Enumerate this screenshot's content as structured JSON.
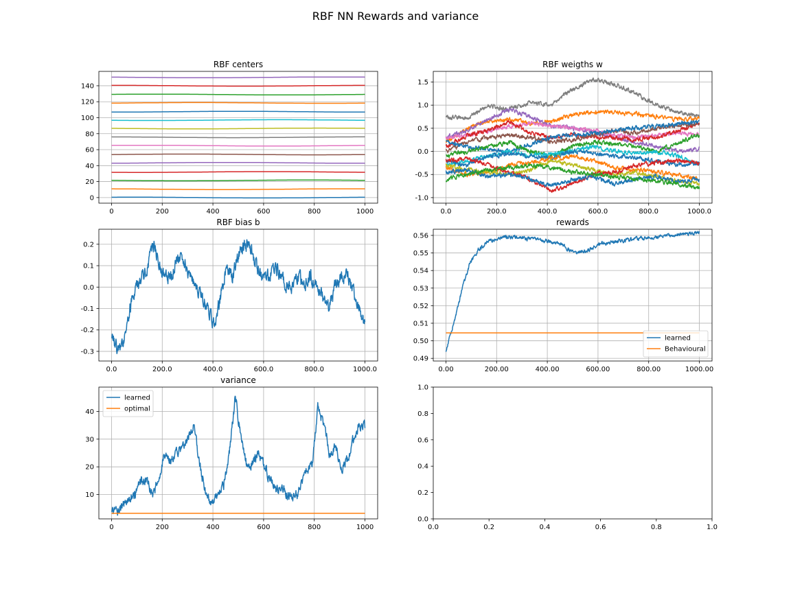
{
  "figure": {
    "title": "RBF NN Rewards and variance"
  },
  "colors": [
    "#1f77b4",
    "#ff7f0e",
    "#2ca02c",
    "#d62728",
    "#9467bd",
    "#8c564b",
    "#e377c2",
    "#7f7f7f",
    "#bcbd22",
    "#17becf"
  ],
  "chart_data": [
    {
      "id": "centers",
      "type": "line",
      "title": "RBF centers",
      "xlim": [
        -50,
        1050
      ],
      "ylim": [
        -7,
        158
      ],
      "xticks": [
        0,
        200,
        400,
        600,
        800,
        1000
      ],
      "yticks": [
        0,
        20,
        40,
        60,
        80,
        100,
        120,
        140
      ],
      "grid": true,
      "series": [
        {
          "style": "wave",
          "base": 0,
          "amp": 0.6,
          "seed": 1,
          "color": "#1f77b4"
        },
        {
          "style": "wave",
          "base": 10.5,
          "amp": 0.6,
          "seed": 2,
          "color": "#ff7f0e"
        },
        {
          "style": "wave",
          "base": 21.5,
          "amp": 0.6,
          "seed": 3,
          "color": "#2ca02c"
        },
        {
          "style": "wave",
          "base": 32,
          "amp": 0.6,
          "seed": 4,
          "color": "#d62728"
        },
        {
          "style": "wave",
          "base": 43.5,
          "amp": 0.6,
          "seed": 5,
          "color": "#9467bd"
        },
        {
          "style": "wave",
          "base": 54,
          "amp": 0.6,
          "seed": 6,
          "color": "#8c564b"
        },
        {
          "style": "wave",
          "base": 65,
          "amp": 0.6,
          "seed": 7,
          "color": "#e377c2"
        },
        {
          "style": "wave",
          "base": 75.5,
          "amp": 0.6,
          "seed": 8,
          "color": "#7f7f7f"
        },
        {
          "style": "wave",
          "base": 86.5,
          "amp": 0.6,
          "seed": 9,
          "color": "#bcbd22"
        },
        {
          "style": "wave",
          "base": 97,
          "amp": 0.6,
          "seed": 10,
          "color": "#17becf"
        },
        {
          "style": "wave",
          "base": 107.5,
          "amp": 0.6,
          "seed": 11,
          "color": "#1f77b4"
        },
        {
          "style": "wave",
          "base": 118.5,
          "amp": 0.6,
          "seed": 12,
          "color": "#ff7f0e"
        },
        {
          "style": "wave",
          "base": 129,
          "amp": 0.6,
          "seed": 13,
          "color": "#2ca02c"
        },
        {
          "style": "wave",
          "base": 140,
          "amp": 0.6,
          "seed": 14,
          "color": "#d62728"
        },
        {
          "style": "wave",
          "base": 150.5,
          "amp": 0.6,
          "seed": 15,
          "color": "#9467bd"
        }
      ]
    },
    {
      "id": "weights",
      "type": "line",
      "title": "RBF weigths w",
      "xlim": [
        -50,
        1050
      ],
      "ylim": [
        -1.12,
        1.73
      ],
      "xticks": [
        0,
        200,
        400,
        600,
        800,
        1000
      ],
      "yticks": [
        -1.0,
        -0.5,
        0.0,
        0.5,
        1.0,
        1.5
      ],
      "grid": true,
      "series": [
        {
          "style": "walk",
          "knots": [
            0.75,
            0.72,
            1.0,
            0.9,
            1.05,
            1.0,
            1.35,
            1.55,
            1.45,
            1.25,
            1.0,
            0.85,
            0.75
          ],
          "noise": 0.05,
          "seed": 21,
          "color": "#7f7f7f"
        },
        {
          "style": "walk",
          "knots": [
            0.2,
            0.5,
            0.65,
            0.7,
            0.6,
            0.65,
            0.8,
            0.85,
            0.85,
            0.8,
            0.75,
            0.7,
            0.7
          ],
          "noise": 0.05,
          "seed": 22,
          "color": "#ff7f0e"
        },
        {
          "style": "walk",
          "knots": [
            0.3,
            0.45,
            0.7,
            0.9,
            0.75,
            0.55,
            0.5,
            0.4,
            0.3,
            0.2,
            0.1,
            0.0,
            0.05
          ],
          "noise": 0.05,
          "seed": 23,
          "color": "#9467bd"
        },
        {
          "style": "walk",
          "knots": [
            0.3,
            0.35,
            0.45,
            0.55,
            0.6,
            0.55,
            0.5,
            0.45,
            0.35,
            0.3,
            0.35,
            0.4,
            0.35
          ],
          "noise": 0.05,
          "seed": 24,
          "color": "#e377c2"
        },
        {
          "style": "walk",
          "knots": [
            0.1,
            0.35,
            0.45,
            0.65,
            0.4,
            0.3,
            0.35,
            0.3,
            0.3,
            0.25,
            0.3,
            0.45,
            0.6
          ],
          "noise": 0.05,
          "seed": 25,
          "color": "#d62728"
        },
        {
          "style": "walk",
          "knots": [
            0.0,
            0.2,
            0.3,
            0.35,
            0.3,
            0.2,
            0.25,
            0.35,
            0.45,
            0.4,
            0.5,
            0.55,
            0.6
          ],
          "noise": 0.05,
          "seed": 26,
          "color": "#8c564b"
        },
        {
          "style": "walk",
          "knots": [
            0.2,
            0.1,
            0.05,
            0.0,
            0.15,
            0.3,
            0.35,
            0.4,
            0.45,
            0.5,
            0.55,
            0.6,
            0.65
          ],
          "noise": 0.05,
          "seed": 27,
          "color": "#1f77b4"
        },
        {
          "style": "walk",
          "knots": [
            -0.1,
            0.0,
            0.1,
            0.2,
            0.0,
            -0.1,
            0.1,
            0.2,
            0.15,
            0.1,
            0.0,
            0.2,
            0.35
          ],
          "noise": 0.05,
          "seed": 28,
          "color": "#2ca02c"
        },
        {
          "style": "walk",
          "knots": [
            -0.3,
            -0.2,
            -0.1,
            0.0,
            -0.1,
            -0.05,
            0.0,
            0.1,
            0.0,
            -0.05,
            0.0,
            -0.1,
            -0.3
          ],
          "noise": 0.05,
          "seed": 29,
          "color": "#17becf"
        },
        {
          "style": "walk",
          "knots": [
            -0.2,
            -0.3,
            -0.1,
            -0.05,
            -0.1,
            -0.15,
            0.0,
            -0.05,
            -0.1,
            -0.15,
            -0.2,
            -0.3,
            -0.25
          ],
          "noise": 0.05,
          "seed": 30,
          "color": "#1f77b4"
        },
        {
          "style": "walk",
          "knots": [
            -0.35,
            -0.5,
            -0.45,
            -0.3,
            -0.25,
            -0.15,
            -0.1,
            -0.2,
            -0.35,
            -0.4,
            -0.45,
            -0.5,
            -0.6
          ],
          "noise": 0.05,
          "seed": 31,
          "color": "#ff7f0e"
        },
        {
          "style": "walk",
          "knots": [
            -0.3,
            -0.4,
            -0.45,
            -0.5,
            -0.4,
            -0.2,
            -0.3,
            -0.4,
            -0.5,
            -0.45,
            -0.55,
            -0.65,
            -0.7
          ],
          "noise": 0.05,
          "seed": 32,
          "color": "#bcbd22"
        },
        {
          "style": "walk",
          "knots": [
            -0.2,
            -0.15,
            -0.3,
            -0.45,
            -0.6,
            -0.85,
            -0.7,
            -0.5,
            -0.45,
            -0.3,
            -0.25,
            -0.2,
            -0.25
          ],
          "noise": 0.05,
          "seed": 33,
          "color": "#d62728"
        },
        {
          "style": "walk",
          "knots": [
            -0.45,
            -0.4,
            -0.55,
            -0.5,
            -0.6,
            -0.75,
            -0.6,
            -0.55,
            -0.7,
            -0.6,
            -0.55,
            -0.65,
            -0.6
          ],
          "noise": 0.05,
          "seed": 34,
          "color": "#1f77b4"
        },
        {
          "style": "walk",
          "knots": [
            -0.6,
            -0.5,
            -0.4,
            -0.35,
            -0.3,
            -0.35,
            -0.45,
            -0.5,
            -0.55,
            -0.6,
            -0.65,
            -0.7,
            -0.8
          ],
          "noise": 0.05,
          "seed": 35,
          "color": "#2ca02c"
        }
      ]
    },
    {
      "id": "bias",
      "type": "line",
      "title": "RBF bias b",
      "xlim": [
        -50,
        1050
      ],
      "ylim": [
        -0.345,
        0.27
      ],
      "xticks": [
        0,
        200,
        400,
        600,
        800,
        1000
      ],
      "yticks": [
        -0.3,
        -0.2,
        -0.1,
        0.0,
        0.1,
        0.2
      ],
      "grid": true,
      "series": [
        {
          "style": "walk",
          "knots": [
            -0.22,
            -0.3,
            -0.25,
            -0.1,
            0.0,
            0.05,
            0.1,
            0.2,
            0.1,
            0.05,
            0.05,
            0.15,
            0.12,
            0.05,
            0.0,
            -0.05,
            -0.1,
            -0.18,
            -0.05,
            0.1,
            0.05,
            0.15,
            0.2,
            0.2,
            0.1,
            0.05,
            0.05,
            0.1,
            0.05,
            0.0,
            0.0,
            0.05,
            0.0,
            0.05,
            0.0,
            -0.05,
            -0.1,
            0.0,
            0.05,
            0.05,
            0.0,
            -0.1,
            -0.18
          ],
          "noise": 0.035,
          "seed": 41,
          "color": "#1f77b4"
        }
      ]
    },
    {
      "id": "rewards",
      "type": "line",
      "title": "rewards",
      "xlim": [
        -50,
        1050
      ],
      "ylim": [
        0.4885,
        0.5635
      ],
      "xticks": [
        0,
        200,
        400,
        600,
        800,
        1000
      ],
      "yticks": [
        0.49,
        0.5,
        0.51,
        0.52,
        0.53,
        0.54,
        0.55,
        0.56
      ],
      "grid": true,
      "legend": "lower-right",
      "series": [
        {
          "name": "learned",
          "style": "walk",
          "knots": [
            0.494,
            0.51,
            0.53,
            0.545,
            0.552,
            0.556,
            0.558,
            0.559,
            0.559,
            0.559,
            0.558,
            0.558,
            0.557,
            0.556,
            0.555,
            0.552,
            0.55,
            0.551,
            0.553,
            0.555,
            0.556,
            0.557,
            0.557,
            0.558,
            0.558,
            0.559,
            0.559,
            0.56,
            0.56,
            0.561,
            0.561,
            0.562
          ],
          "noise": 0.0012,
          "seed": 51,
          "color": "#1f77b4"
        },
        {
          "name": "Behavioural",
          "style": "const",
          "value": 0.5045,
          "color": "#ff7f0e"
        }
      ]
    },
    {
      "id": "variance",
      "type": "line",
      "title": "variance",
      "xlim": [
        -50,
        1050
      ],
      "ylim": [
        1.2,
        48.8
      ],
      "xticks": [
        0,
        200,
        400,
        600,
        800,
        1000
      ],
      "yticks": [
        10,
        20,
        30,
        40
      ],
      "grid": true,
      "legend": "upper-left",
      "series": [
        {
          "name": "learned",
          "style": "walk",
          "knots": [
            3.5,
            4,
            6,
            8,
            10,
            15,
            14,
            10,
            15,
            25,
            22,
            25,
            27,
            30,
            35,
            20,
            10,
            6,
            10,
            13,
            25,
            45,
            30,
            20,
            22,
            25,
            20,
            15,
            12,
            12,
            10,
            9,
            12,
            18,
            20,
            42,
            35,
            25,
            28,
            20,
            22,
            30,
            35,
            35
          ],
          "noise": 2.0,
          "seed": 61,
          "color": "#1f77b4"
        },
        {
          "name": "optimal",
          "style": "const",
          "value": 3.2,
          "color": "#ff7f0e"
        }
      ]
    },
    {
      "id": "empty",
      "type": "line",
      "title": "",
      "xlim": [
        0,
        1
      ],
      "ylim": [
        0,
        1
      ],
      "xticks": [
        0.0,
        0.2,
        0.4,
        0.6,
        0.8,
        1.0
      ],
      "yticks": [
        0.0,
        0.2,
        0.4,
        0.6,
        0.8,
        1.0
      ],
      "tickformat": 1,
      "grid": false,
      "series": []
    }
  ]
}
